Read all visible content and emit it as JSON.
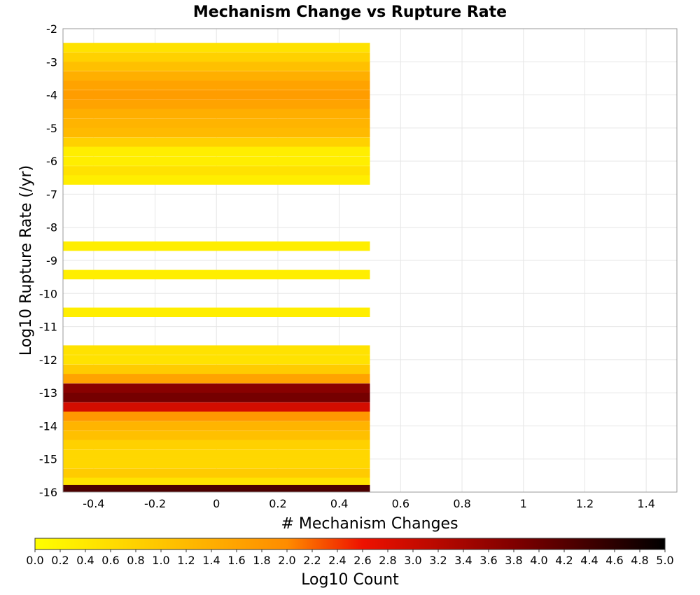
{
  "chart_data": {
    "type": "heatmap",
    "title": "Mechanism Change vs Rupture Rate",
    "xlabel": "# Mechanism Changes",
    "ylabel": "Log10 Rupture Rate (/yr)",
    "xlim": [
      -0.5,
      1.5
    ],
    "ylim": [
      -16,
      -2
    ],
    "x_ticks": [
      "-0.4",
      "-0.2",
      "0",
      "0.2",
      "0.4",
      "0.6",
      "0.8",
      "1",
      "1.2",
      "1.4"
    ],
    "y_ticks": [
      "-2",
      "-3",
      "-4",
      "-5",
      "-6",
      "-7",
      "-8",
      "-9",
      "-10",
      "-11",
      "-12",
      "-13",
      "-14",
      "-15",
      "-16"
    ],
    "grid": true,
    "x_bin": [
      -0.5,
      0.5
    ],
    "y_bin_width": 0.286,
    "cells": [
      {
        "x": 0,
        "y": -2.57,
        "value": 0.5
      },
      {
        "x": 0,
        "y": -2.86,
        "value": 0.8
      },
      {
        "x": 0,
        "y": -3.14,
        "value": 1.1
      },
      {
        "x": 0,
        "y": -3.43,
        "value": 1.4
      },
      {
        "x": 0,
        "y": -3.71,
        "value": 1.6
      },
      {
        "x": 0,
        "y": -4.0,
        "value": 1.7
      },
      {
        "x": 0,
        "y": -4.29,
        "value": 1.6
      },
      {
        "x": 0,
        "y": -4.57,
        "value": 1.4
      },
      {
        "x": 0,
        "y": -4.86,
        "value": 1.3
      },
      {
        "x": 0,
        "y": -5.14,
        "value": 1.2
      },
      {
        "x": 0,
        "y": -5.43,
        "value": 0.8
      },
      {
        "x": 0,
        "y": -5.71,
        "value": 0.3
      },
      {
        "x": 0,
        "y": -6.0,
        "value": 0.3
      },
      {
        "x": 0,
        "y": -6.29,
        "value": 0.5
      },
      {
        "x": 0,
        "y": -6.57,
        "value": 0.3
      },
      {
        "x": 0,
        "y": -8.57,
        "value": 0.3
      },
      {
        "x": 0,
        "y": -9.43,
        "value": 0.3
      },
      {
        "x": 0,
        "y": -10.57,
        "value": 0.3
      },
      {
        "x": 0,
        "y": -11.71,
        "value": 0.5
      },
      {
        "x": 0,
        "y": -12.0,
        "value": 0.5
      },
      {
        "x": 0,
        "y": -12.29,
        "value": 0.9
      },
      {
        "x": 0,
        "y": -12.57,
        "value": 1.6
      },
      {
        "x": 0,
        "y": -12.86,
        "value": 3.7
      },
      {
        "x": 0,
        "y": -13.14,
        "value": 3.9
      },
      {
        "x": 0,
        "y": -13.43,
        "value": 2.9
      },
      {
        "x": 0,
        "y": -13.71,
        "value": 1.8
      },
      {
        "x": 0,
        "y": -14.0,
        "value": 1.3
      },
      {
        "x": 0,
        "y": -14.29,
        "value": 1.1
      },
      {
        "x": 0,
        "y": -14.57,
        "value": 0.8
      },
      {
        "x": 0,
        "y": -14.86,
        "value": 0.7
      },
      {
        "x": 0,
        "y": -15.14,
        "value": 0.7
      },
      {
        "x": 0,
        "y": -15.43,
        "value": 0.9
      },
      {
        "x": 0,
        "y": -15.71,
        "value": 0.5
      },
      {
        "x": 0,
        "y": -15.93,
        "value": 4.3
      }
    ],
    "colorbar": {
      "label": "Log10 Count",
      "min": 0.0,
      "max": 5.0,
      "ticks": [
        "0.0",
        "0.2",
        "0.4",
        "0.6",
        "0.8",
        "1.0",
        "1.2",
        "1.4",
        "1.6",
        "1.8",
        "2.0",
        "2.2",
        "2.4",
        "2.6",
        "2.8",
        "3.0",
        "3.2",
        "3.4",
        "3.6",
        "3.8",
        "4.0",
        "4.2",
        "4.4",
        "4.6",
        "4.8",
        "5.0"
      ],
      "colors": [
        "#ffff00",
        "#ffa500",
        "#ff0000",
        "#800000",
        "#000000"
      ]
    }
  }
}
